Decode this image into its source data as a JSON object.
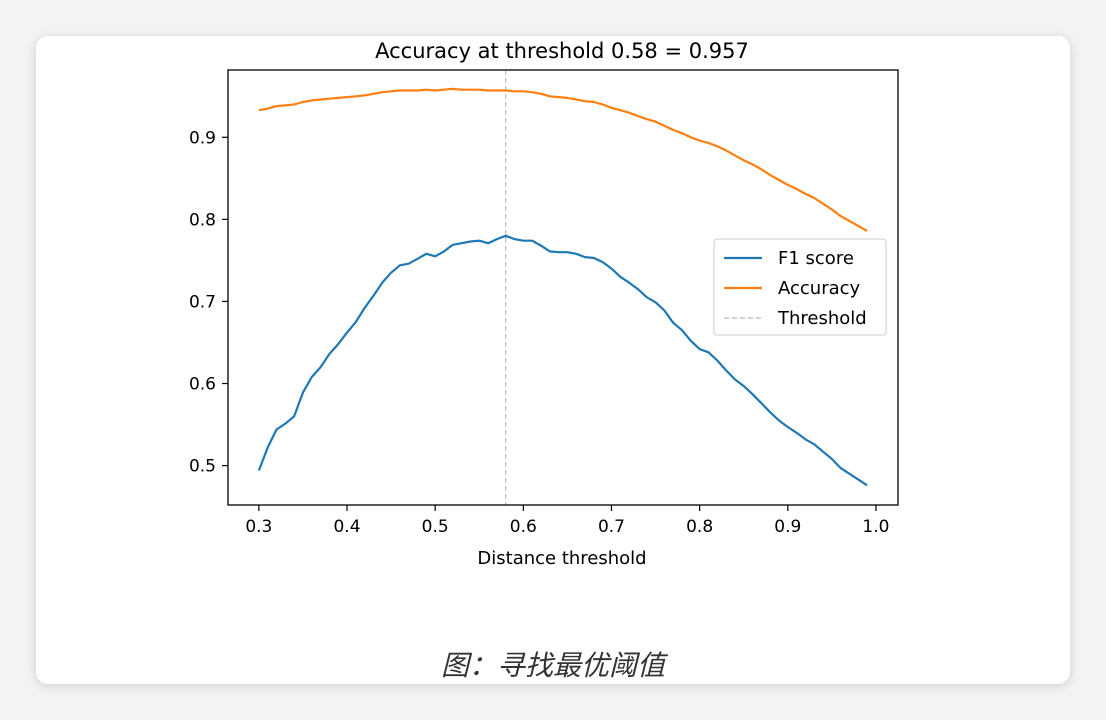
{
  "chart_data": {
    "type": "line",
    "title": "Accuracy at threshold 0.58 = 0.957",
    "xlabel": "Distance threshold",
    "ylabel": "",
    "xlim": [
      0.265,
      1.025
    ],
    "ylim": [
      0.452,
      0.982
    ],
    "x_ticks": [
      0.3,
      0.4,
      0.5,
      0.6,
      0.7,
      0.8,
      0.9,
      1.0
    ],
    "x_tick_labels": [
      "0.3",
      "0.4",
      "0.5",
      "0.6",
      "0.7",
      "0.8",
      "0.9",
      "1.0"
    ],
    "y_ticks": [
      0.5,
      0.6,
      0.7,
      0.8,
      0.9
    ],
    "y_tick_labels": [
      "0.5",
      "0.6",
      "0.7",
      "0.8",
      "0.9"
    ],
    "grid": false,
    "legend_position": "center-right",
    "threshold": 0.58,
    "series": [
      {
        "name": "F1 score",
        "color": "#1f77b4",
        "x": [
          0.3,
          0.31,
          0.32,
          0.33,
          0.34,
          0.35,
          0.36,
          0.37,
          0.38,
          0.39,
          0.4,
          0.41,
          0.42,
          0.43,
          0.44,
          0.45,
          0.46,
          0.47,
          0.48,
          0.49,
          0.5,
          0.51,
          0.52,
          0.53,
          0.54,
          0.55,
          0.56,
          0.57,
          0.58,
          0.59,
          0.6,
          0.61,
          0.62,
          0.63,
          0.64,
          0.65,
          0.66,
          0.67,
          0.68,
          0.69,
          0.7,
          0.71,
          0.72,
          0.73,
          0.74,
          0.75,
          0.76,
          0.77,
          0.78,
          0.79,
          0.8,
          0.81,
          0.82,
          0.83,
          0.84,
          0.85,
          0.86,
          0.87,
          0.88,
          0.89,
          0.9,
          0.91,
          0.92,
          0.93,
          0.94,
          0.95,
          0.96,
          0.97,
          0.98,
          0.99
        ],
        "y": [
          0.494,
          0.522,
          0.544,
          0.551,
          0.56,
          0.589,
          0.608,
          0.62,
          0.636,
          0.648,
          0.662,
          0.675,
          0.692,
          0.707,
          0.723,
          0.735,
          0.744,
          0.746,
          0.752,
          0.758,
          0.755,
          0.761,
          0.769,
          0.771,
          0.773,
          0.774,
          0.771,
          0.776,
          0.78,
          0.776,
          0.774,
          0.774,
          0.768,
          0.761,
          0.76,
          0.76,
          0.758,
          0.754,
          0.753,
          0.748,
          0.74,
          0.73,
          0.723,
          0.715,
          0.705,
          0.699,
          0.689,
          0.674,
          0.665,
          0.652,
          0.642,
          0.638,
          0.628,
          0.616,
          0.605,
          0.597,
          0.587,
          0.576,
          0.565,
          0.555,
          0.547,
          0.54,
          0.532,
          0.526,
          0.517,
          0.508,
          0.497,
          0.49,
          0.483,
          0.476
        ]
      },
      {
        "name": "Accuracy",
        "color": "#ff7f0e",
        "x": [
          0.3,
          0.31,
          0.32,
          0.33,
          0.34,
          0.35,
          0.36,
          0.37,
          0.38,
          0.39,
          0.4,
          0.41,
          0.42,
          0.43,
          0.44,
          0.45,
          0.46,
          0.47,
          0.48,
          0.49,
          0.5,
          0.51,
          0.52,
          0.53,
          0.54,
          0.55,
          0.56,
          0.57,
          0.58,
          0.59,
          0.6,
          0.61,
          0.62,
          0.63,
          0.64,
          0.65,
          0.66,
          0.67,
          0.68,
          0.69,
          0.7,
          0.71,
          0.72,
          0.73,
          0.74,
          0.75,
          0.76,
          0.77,
          0.78,
          0.79,
          0.8,
          0.81,
          0.82,
          0.83,
          0.84,
          0.85,
          0.86,
          0.87,
          0.88,
          0.89,
          0.9,
          0.91,
          0.92,
          0.93,
          0.94,
          0.95,
          0.96,
          0.97,
          0.98,
          0.99
        ],
        "y": [
          0.933,
          0.935,
          0.938,
          0.939,
          0.94,
          0.943,
          0.945,
          0.946,
          0.947,
          0.948,
          0.949,
          0.95,
          0.951,
          0.953,
          0.955,
          0.956,
          0.957,
          0.957,
          0.957,
          0.958,
          0.957,
          0.958,
          0.959,
          0.958,
          0.958,
          0.958,
          0.957,
          0.957,
          0.957,
          0.956,
          0.956,
          0.955,
          0.953,
          0.95,
          0.949,
          0.948,
          0.946,
          0.944,
          0.943,
          0.94,
          0.936,
          0.933,
          0.93,
          0.926,
          0.922,
          0.919,
          0.914,
          0.909,
          0.905,
          0.9,
          0.896,
          0.893,
          0.889,
          0.884,
          0.878,
          0.872,
          0.867,
          0.861,
          0.854,
          0.848,
          0.842,
          0.837,
          0.831,
          0.826,
          0.819,
          0.812,
          0.804,
          0.798,
          0.792,
          0.786
        ]
      }
    ],
    "threshold_label": "Threshold"
  },
  "caption": "图：寻找最优阈值",
  "colors": {
    "threshold_line": "#bbbbbb",
    "axes": "#000000"
  }
}
